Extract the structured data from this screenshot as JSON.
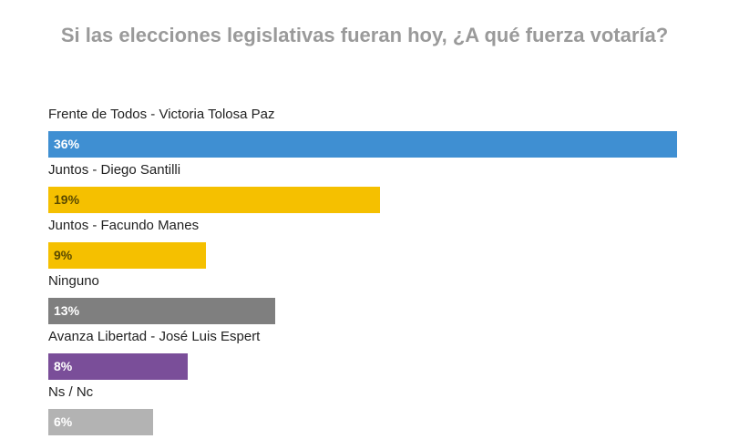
{
  "chart_data": {
    "type": "bar",
    "orientation": "horizontal",
    "title": "Si las elecciones legislativas fueran hoy, ¿A qué fuerza votaría?",
    "categories": [
      "Frente de Todos - Victoria Tolosa Paz",
      "Juntos - Diego Santilli",
      "Juntos - Facundo Manes",
      "Ninguno",
      "Avanza Libertad - José Luis Espert",
      "Ns / Nc"
    ],
    "values": [
      36,
      19,
      9,
      13,
      8,
      6
    ],
    "value_labels": [
      "36%",
      "19%",
      "9%",
      "13%",
      "8%",
      "6%"
    ],
    "colors": [
      "#3f8fd2",
      "#f5c000",
      "#f5c000",
      "#7f7f7f",
      "#7a4e99",
      "#b3b3b3"
    ],
    "label_colors": [
      "#ffffff",
      "#5a4a00",
      "#5a4a00",
      "#ffffff",
      "#ffffff",
      "#ffffff"
    ],
    "xlim": [
      0,
      36
    ],
    "grid": false,
    "legend": "none"
  }
}
